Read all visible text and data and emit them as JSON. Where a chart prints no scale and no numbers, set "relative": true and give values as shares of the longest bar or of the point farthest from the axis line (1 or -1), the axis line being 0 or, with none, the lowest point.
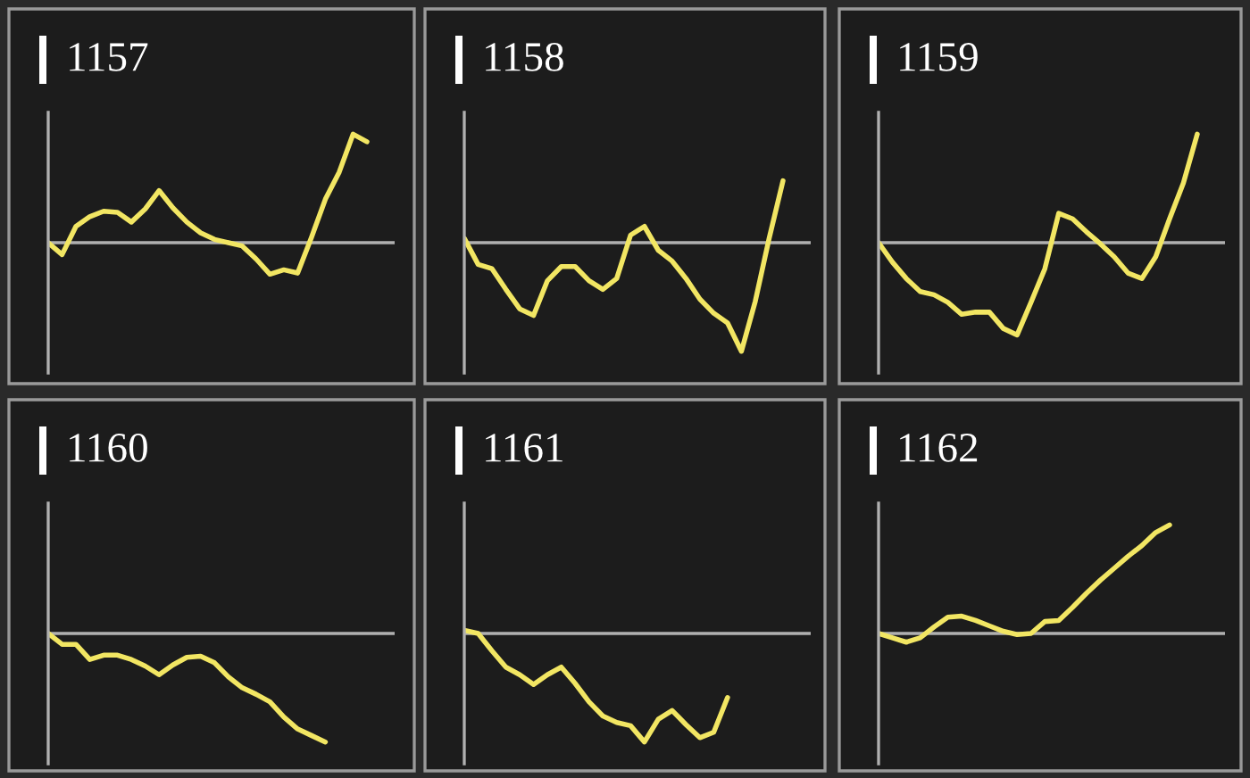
{
  "chart_data": [
    {
      "type": "line",
      "title": "1157",
      "relative": true,
      "legend": false,
      "categories": [
        null,
        null,
        null,
        null,
        null,
        null,
        null,
        null,
        null,
        null,
        null,
        null,
        null,
        null,
        null,
        null,
        null,
        null,
        null,
        null,
        null,
        null,
        null,
        null,
        null
      ],
      "series": [
        {
          "color": "#f2e663",
          "values": [
            0,
            -0.11,
            0.15,
            0.24,
            0.29,
            0.28,
            0.19,
            0.31,
            0.48,
            0.32,
            0.19,
            0.09,
            0.03,
            0,
            -0.03,
            -0.15,
            -0.29,
            -0.25,
            -0.28,
            0.05,
            0.4,
            0.65,
            1,
            0.93,
            null
          ]
        }
      ]
    },
    {
      "type": "line",
      "title": "1158",
      "relative": true,
      "legend": false,
      "categories": [
        null,
        null,
        null,
        null,
        null,
        null,
        null,
        null,
        null,
        null,
        null,
        null,
        null,
        null,
        null,
        null,
        null,
        null,
        null,
        null,
        null,
        null,
        null,
        null,
        null
      ],
      "series": [
        {
          "color": "#f2e663",
          "values": [
            0.04,
            -0.2,
            -0.24,
            -0.43,
            -0.61,
            -0.67,
            -0.35,
            -0.22,
            -0.22,
            -0.35,
            -0.43,
            -0.33,
            0.07,
            0.15,
            -0.07,
            -0.17,
            -0.33,
            -0.52,
            -0.65,
            -0.74,
            -1,
            -0.54,
            0.04,
            0.57,
            null
          ]
        }
      ]
    },
    {
      "type": "line",
      "title": "1159",
      "relative": true,
      "legend": false,
      "categories": [
        null,
        null,
        null,
        null,
        null,
        null,
        null,
        null,
        null,
        null,
        null,
        null,
        null,
        null,
        null,
        null,
        null,
        null,
        null,
        null,
        null,
        null,
        null,
        null,
        null
      ],
      "series": [
        {
          "color": "#f2e663",
          "values": [
            0,
            -0.18,
            -0.33,
            -0.45,
            -0.48,
            -0.55,
            -0.66,
            -0.64,
            -0.64,
            -0.79,
            -0.85,
            -0.55,
            -0.24,
            0.27,
            0.22,
            0.1,
            -0.01,
            -0.13,
            -0.28,
            -0.33,
            -0.13,
            0.22,
            0.55,
            1,
            null
          ]
        }
      ]
    },
    {
      "type": "line",
      "title": "1160",
      "relative": true,
      "legend": false,
      "categories": [
        null,
        null,
        null,
        null,
        null,
        null,
        null,
        null,
        null,
        null,
        null,
        null,
        null,
        null,
        null,
        null,
        null,
        null,
        null,
        null,
        null,
        null,
        null,
        null,
        null
      ],
      "series": [
        {
          "color": "#f2e663",
          "values": [
            0,
            -0.1,
            -0.1,
            -0.24,
            -0.2,
            -0.2,
            -0.24,
            -0.3,
            -0.38,
            -0.29,
            -0.22,
            -0.21,
            -0.27,
            -0.4,
            -0.5,
            -0.56,
            -0.63,
            -0.77,
            -0.88,
            -0.94,
            -1,
            null,
            null,
            null,
            null
          ]
        }
      ]
    },
    {
      "type": "line",
      "title": "1161",
      "relative": true,
      "legend": false,
      "categories": [
        null,
        null,
        null,
        null,
        null,
        null,
        null,
        null,
        null,
        null,
        null,
        null,
        null,
        null,
        null,
        null,
        null,
        null,
        null,
        null,
        null,
        null,
        null,
        null,
        null
      ],
      "series": [
        {
          "color": "#f2e663",
          "values": [
            0.03,
            0,
            -0.16,
            -0.31,
            -0.38,
            -0.47,
            -0.38,
            -0.31,
            -0.46,
            -0.63,
            -0.76,
            -0.82,
            -0.85,
            -1,
            -0.79,
            -0.71,
            -0.84,
            -0.96,
            -0.91,
            -0.59,
            null,
            null,
            null,
            null,
            null
          ]
        }
      ]
    },
    {
      "type": "line",
      "title": "1162",
      "relative": true,
      "legend": false,
      "categories": [
        null,
        null,
        null,
        null,
        null,
        null,
        null,
        null,
        null,
        null,
        null,
        null,
        null,
        null,
        null,
        null,
        null,
        null,
        null,
        null,
        null,
        null,
        null,
        null,
        null
      ],
      "series": [
        {
          "color": "#f2e663",
          "values": [
            0,
            -0.04,
            -0.08,
            -0.04,
            0.06,
            0.15,
            0.16,
            0.12,
            0.07,
            0.02,
            -0.01,
            0,
            0.11,
            0.12,
            0.24,
            0.37,
            0.49,
            0.6,
            0.71,
            0.81,
            0.93,
            1,
            null,
            null,
            null
          ]
        }
      ]
    }
  ]
}
